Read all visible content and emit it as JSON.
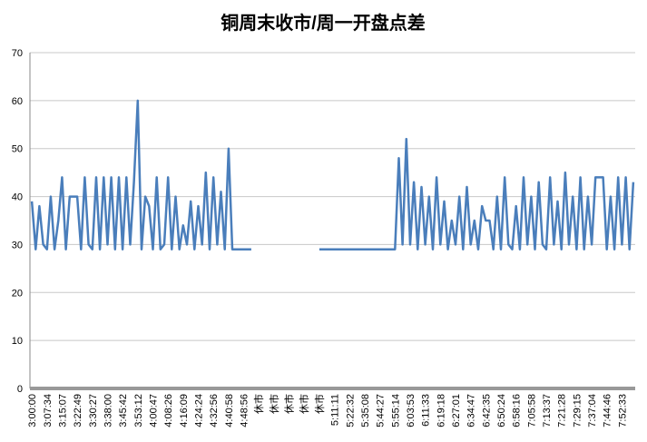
{
  "chart_data": {
    "type": "line",
    "title": "铜周末收市/周一开盘点差",
    "categories": [
      "3:00:00",
      null,
      null,
      null,
      "3:07:34",
      null,
      null,
      null,
      "3:15:07",
      null,
      null,
      null,
      "3:22:49",
      null,
      null,
      null,
      "3:30:27",
      null,
      null,
      null,
      "3:38:00",
      null,
      null,
      null,
      "3:45:42",
      null,
      null,
      null,
      "3:53:12",
      null,
      null,
      null,
      "4:00:47",
      null,
      null,
      null,
      "4:08:26",
      null,
      null,
      null,
      "4:16:09",
      null,
      null,
      null,
      "4:24:24",
      null,
      null,
      null,
      "4:32:56",
      null,
      null,
      null,
      "4:40:58",
      null,
      null,
      null,
      "4:48:56",
      null,
      null,
      null,
      "休市",
      null,
      null,
      null,
      "休市",
      null,
      null,
      null,
      "休市",
      null,
      null,
      null,
      "休市",
      null,
      null,
      null,
      "休市",
      null,
      null,
      null,
      "5:11:11",
      null,
      null,
      null,
      "5:22:32",
      null,
      null,
      null,
      "5:35:08",
      null,
      null,
      null,
      "5:44:27",
      null,
      null,
      null,
      "5:55:14",
      null,
      null,
      null,
      "6:03:53",
      null,
      null,
      null,
      "6:11:33",
      null,
      null,
      null,
      "6:19:18",
      null,
      null,
      null,
      "6:27:01",
      null,
      null,
      null,
      "6:34:47",
      null,
      null,
      null,
      "6:42:35",
      null,
      null,
      null,
      "6:50:24",
      null,
      null,
      null,
      "6:58:16",
      null,
      null,
      null,
      "7:05:58",
      null,
      null,
      null,
      "7:13:37",
      null,
      null,
      null,
      "7:21:28",
      null,
      null,
      null,
      "7:29:15",
      null,
      null,
      null,
      "7:37:04",
      null,
      null,
      null,
      "7:44:46",
      null,
      null,
      null,
      "7:52:33",
      null,
      null,
      null
    ],
    "series": [
      {
        "color": "#4a7ebb",
        "values": [
          39,
          29,
          38,
          30,
          29,
          40,
          29,
          35,
          44,
          29,
          40,
          40,
          40,
          29,
          44,
          30,
          29,
          44,
          29,
          44,
          30,
          44,
          29,
          44,
          29,
          44,
          30,
          43,
          60,
          29,
          40,
          38,
          29,
          44,
          29,
          30,
          44,
          29,
          40,
          29,
          34,
          30,
          39,
          29,
          38,
          30,
          45,
          29,
          44,
          30,
          41,
          29,
          50,
          29,
          29,
          29,
          29,
          29,
          29,
          null,
          null,
          null,
          null,
          null,
          null,
          null,
          null,
          null,
          null,
          null,
          null,
          null,
          null,
          null,
          null,
          null,
          29,
          29,
          29,
          29,
          29,
          29,
          29,
          29,
          29,
          29,
          29,
          29,
          29,
          29,
          29,
          29,
          29,
          29,
          29,
          29,
          29,
          48,
          30,
          52,
          30,
          43,
          29,
          42,
          30,
          40,
          29,
          44,
          30,
          39,
          29,
          35,
          30,
          40,
          29,
          42,
          30,
          35,
          29,
          38,
          35,
          35,
          29,
          40,
          29,
          44,
          30,
          29,
          38,
          29,
          44,
          30,
          40,
          29,
          43,
          30,
          29,
          44,
          30,
          39,
          29,
          45,
          30,
          40,
          29,
          44,
          29,
          40,
          30,
          44,
          44,
          44,
          29,
          40,
          29,
          44,
          30,
          44,
          29,
          43
        ]
      }
    ],
    "ylim": [
      0,
      70
    ],
    "yticks": [
      0,
      10,
      20,
      30,
      40,
      50,
      60,
      70
    ],
    "grid": true
  }
}
